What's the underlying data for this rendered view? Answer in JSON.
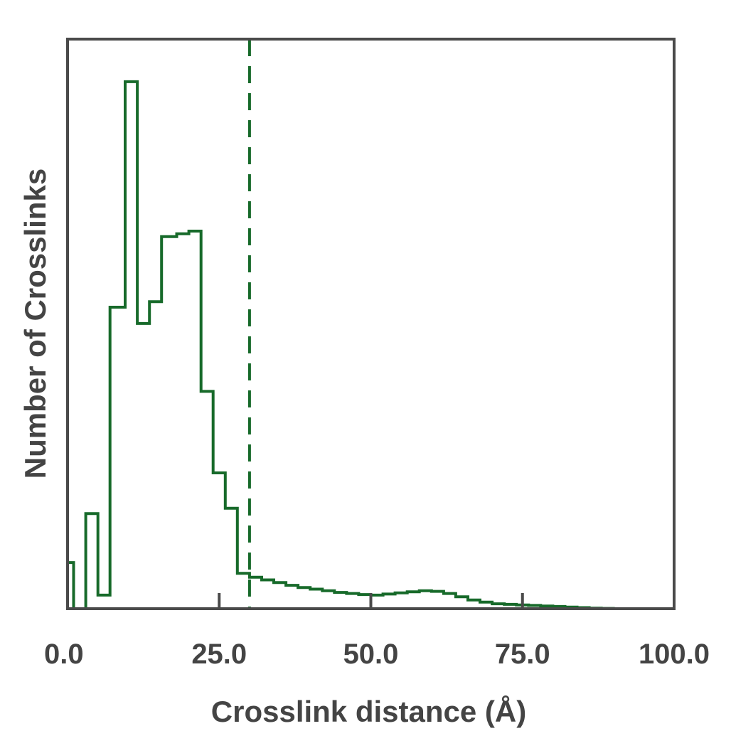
{
  "chart_data": {
    "type": "histogram",
    "title": "",
    "xlabel": "Crosslink distance (Å)",
    "ylabel": "Number of Crosslinks",
    "xlim": [
      0,
      100
    ],
    "ylim": [
      0,
      100
    ],
    "xticks": [
      0,
      25,
      50,
      75,
      100
    ],
    "xtick_labels": [
      "0.0",
      "25.0",
      "50.0",
      "75.0",
      "100.0"
    ],
    "yticks_shown": false,
    "grid": false,
    "legend": "none",
    "threshold_line": {
      "x": 30,
      "style": "dashed"
    },
    "series": [
      {
        "bins_edges": [
          0,
          1,
          3,
          5,
          7,
          9.5,
          11.5,
          13.5,
          15.5,
          18,
          20,
          22,
          24,
          26,
          28,
          30,
          32,
          34,
          36,
          38,
          40,
          42,
          44,
          46,
          48,
          50,
          52,
          54,
          56,
          58,
          60,
          62,
          64,
          66,
          68,
          70,
          72,
          74,
          76,
          78,
          80,
          82,
          84,
          86,
          88,
          90,
          100
        ],
        "values": [
          8.5,
          0,
          17.5,
          2.5,
          55.5,
          97,
          52.5,
          56.5,
          68.5,
          69,
          69.5,
          40,
          25,
          18.5,
          6.5,
          5.8,
          5.3,
          4.8,
          4.3,
          3.9,
          3.6,
          3.3,
          3.0,
          2.8,
          2.6,
          2.5,
          2.7,
          2.9,
          3.1,
          3.3,
          3.2,
          2.8,
          2.2,
          1.6,
          1.2,
          0.9,
          0.8,
          0.7,
          0.6,
          0.5,
          0.4,
          0.3,
          0.2,
          0.1,
          0.05,
          0
        ]
      }
    ],
    "colors": {
      "series": "#176a2a",
      "axes": "#4a4a4a",
      "text": "#444444"
    }
  }
}
